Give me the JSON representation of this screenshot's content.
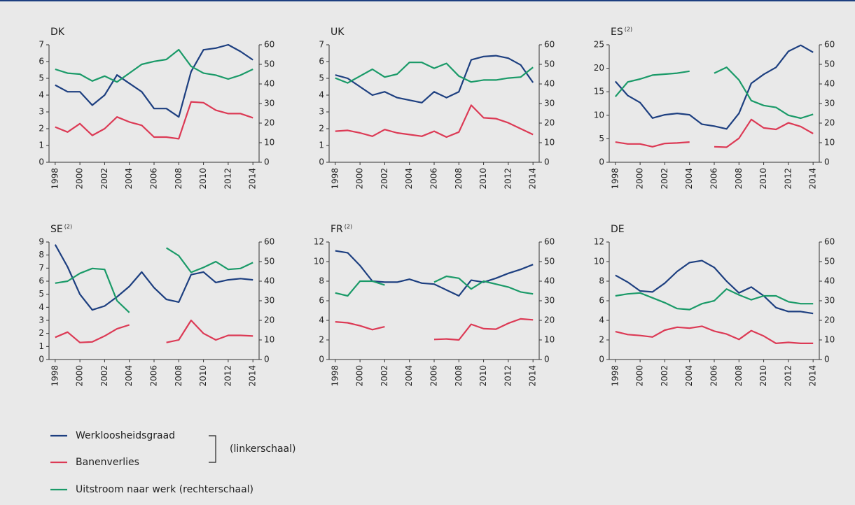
{
  "legend_note": "(linkerschaal)",
  "chart_data": [
    {
      "type": "line",
      "title": "DK",
      "x": [
        1998,
        1999,
        2000,
        2001,
        2002,
        2003,
        2004,
        2005,
        2006,
        2007,
        2008,
        2009,
        2010,
        2011,
        2012,
        2013,
        2014
      ],
      "xlim": [
        1997.5,
        2014.5
      ],
      "xticks": [
        1998,
        2000,
        2002,
        2004,
        2006,
        2008,
        2010,
        2012,
        2014
      ],
      "ylim": [
        0,
        7
      ],
      "yticks": [
        0,
        1,
        2,
        3,
        4,
        5,
        6,
        7
      ],
      "y2lim": [
        0,
        60
      ],
      "y2ticks": [
        0,
        10,
        20,
        30,
        40,
        50,
        60
      ],
      "series": [
        {
          "name": "Werkloosheidsgraad",
          "color": "#1d3f80",
          "values": [
            4.6,
            4.2,
            4.2,
            3.4,
            4.0,
            5.2,
            4.7,
            4.2,
            3.2,
            3.2,
            2.7,
            5.4,
            6.7,
            6.8,
            7.0,
            6.6,
            6.1
          ]
        },
        {
          "name": "Banenverlies",
          "color": "#dc3a55",
          "values": [
            2.1,
            1.8,
            2.3,
            1.6,
            2.0,
            2.7,
            2.4,
            2.2,
            1.5,
            1.5,
            1.4,
            3.6,
            3.55,
            3.1,
            2.9,
            2.9,
            2.65
          ]
        },
        {
          "name": "Uitstroom naar werk (rechterschaal)",
          "color": "#1a9a68",
          "axis": "y2",
          "values": [
            47.5,
            45.5,
            45,
            41.5,
            44,
            41,
            45.5,
            50,
            51.5,
            52.5,
            57.5,
            49,
            45.5,
            44.5,
            42.5,
            44.5,
            47.5
          ]
        }
      ]
    },
    {
      "type": "line",
      "title": "UK",
      "x": [
        1998,
        1999,
        2000,
        2001,
        2002,
        2003,
        2004,
        2005,
        2006,
        2007,
        2008,
        2009,
        2010,
        2011,
        2012,
        2013,
        2014
      ],
      "xlim": [
        1997.5,
        2014.5
      ],
      "xticks": [
        1998,
        2000,
        2002,
        2004,
        2006,
        2008,
        2010,
        2012,
        2014
      ],
      "ylim": [
        0,
        7
      ],
      "yticks": [
        0,
        1,
        2,
        3,
        4,
        5,
        6,
        7
      ],
      "y2lim": [
        0,
        60
      ],
      "y2ticks": [
        0,
        10,
        20,
        30,
        40,
        50,
        60
      ],
      "series": [
        {
          "name": "Werkloosheidsgraad",
          "color": "#1d3f80",
          "values": [
            5.2,
            5.0,
            4.5,
            4.0,
            4.2,
            3.85,
            3.7,
            3.55,
            4.2,
            3.85,
            4.2,
            6.1,
            6.3,
            6.35,
            6.2,
            5.8,
            4.75
          ]
        },
        {
          "name": "Banenverlies",
          "color": "#dc3a55",
          "values": [
            1.85,
            1.9,
            1.75,
            1.55,
            1.95,
            1.75,
            1.65,
            1.55,
            1.85,
            1.5,
            1.8,
            3.4,
            2.65,
            2.6,
            2.35,
            2.0,
            1.65
          ]
        },
        {
          "name": "Uitstroom naar werk (rechterschaal)",
          "color": "#1a9a68",
          "axis": "y2",
          "values": [
            43,
            40.5,
            44,
            47.5,
            43.5,
            45,
            51,
            51,
            48,
            50.5,
            44,
            41,
            42,
            42,
            43,
            43.5,
            48.5
          ]
        }
      ]
    },
    {
      "type": "line",
      "title": "ES",
      "title_note": "(2)",
      "x": [
        1998,
        1999,
        2000,
        2001,
        2002,
        2003,
        2004,
        2005,
        2006,
        2007,
        2008,
        2009,
        2010,
        2011,
        2012,
        2013,
        2014
      ],
      "xlim": [
        1997.5,
        2014.5
      ],
      "xticks": [
        1998,
        2000,
        2002,
        2004,
        2006,
        2008,
        2010,
        2012,
        2014
      ],
      "ylim": [
        0,
        25
      ],
      "yticks": [
        0,
        5,
        10,
        15,
        20,
        25
      ],
      "y2lim": [
        0,
        60
      ],
      "y2ticks": [
        0,
        10,
        20,
        30,
        40,
        50,
        60
      ],
      "series": [
        {
          "name": "Werkloosheidsgraad",
          "color": "#1d3f80",
          "values": [
            17.2,
            14.2,
            12.7,
            9.4,
            10.1,
            10.4,
            10.1,
            8.1,
            7.7,
            7.1,
            10.4,
            16.8,
            18.7,
            20.2,
            23.6,
            24.9,
            23.4
          ]
        },
        {
          "name": "Banenverlies",
          "color": "#dc3a55",
          "values": [
            4.3,
            3.9,
            3.9,
            3.3,
            4.0,
            4.1,
            4.3,
            null,
            3.3,
            3.2,
            5.1,
            9.1,
            7.3,
            7.0,
            8.4,
            7.6,
            6.1
          ]
        },
        {
          "name": "Uitstroom naar werk (rechterschaal)",
          "color": "#1a9a68",
          "axis": "y2",
          "values": [
            33.5,
            41,
            42.5,
            44.5,
            45,
            45.5,
            46.5,
            null,
            45.5,
            48.5,
            42,
            31.5,
            29,
            28,
            24,
            22.5,
            24.5
          ]
        }
      ]
    },
    {
      "type": "line",
      "title": "SE",
      "title_note": "(2)",
      "x": [
        1998,
        1999,
        2000,
        2001,
        2002,
        2003,
        2004,
        2005,
        2006,
        2007,
        2008,
        2009,
        2010,
        2011,
        2012,
        2013,
        2014
      ],
      "xlim": [
        1997.5,
        2014.5
      ],
      "xticks": [
        1998,
        2000,
        2002,
        2004,
        2006,
        2008,
        2010,
        2012,
        2014
      ],
      "ylim": [
        0,
        9
      ],
      "yticks": [
        0,
        1,
        2,
        3,
        4,
        5,
        6,
        7,
        8,
        9
      ],
      "y2lim": [
        0,
        60
      ],
      "y2ticks": [
        0,
        10,
        20,
        30,
        40,
        50,
        60
      ],
      "series": [
        {
          "name": "Werkloosheidsgraad",
          "color": "#1d3f80",
          "values": [
            8.8,
            7.1,
            5.0,
            3.8,
            4.1,
            4.8,
            5.6,
            6.7,
            5.5,
            4.6,
            4.4,
            6.5,
            6.7,
            5.9,
            6.1,
            6.2,
            6.1
          ]
        },
        {
          "name": "Banenverlies",
          "color": "#dc3a55",
          "values": [
            1.7,
            2.1,
            1.3,
            1.35,
            1.8,
            2.35,
            2.65,
            null,
            null,
            1.3,
            1.5,
            3.0,
            2.0,
            1.5,
            1.85,
            1.85,
            1.8
          ]
        },
        {
          "name": "Uitstroom naar werk (rechterschaal)",
          "color": "#1a9a68",
          "axis": "y2",
          "values": [
            39,
            40,
            44,
            46.5,
            46,
            30,
            24,
            null,
            null,
            57,
            53,
            44.5,
            47,
            50,
            46,
            46.5,
            49.5
          ]
        }
      ]
    },
    {
      "type": "line",
      "title": "FR",
      "title_note": "(2)",
      "x": [
        1998,
        1999,
        2000,
        2001,
        2002,
        2003,
        2004,
        2005,
        2006,
        2007,
        2008,
        2009,
        2010,
        2011,
        2012,
        2013,
        2014
      ],
      "xlim": [
        1997.5,
        2014.5
      ],
      "xticks": [
        1998,
        2000,
        2002,
        2004,
        2006,
        2008,
        2010,
        2012,
        2014
      ],
      "ylim": [
        0,
        12
      ],
      "yticks": [
        0,
        2,
        4,
        6,
        8,
        10,
        12
      ],
      "y2lim": [
        0,
        60
      ],
      "y2ticks": [
        0,
        10,
        20,
        30,
        40,
        50,
        60
      ],
      "series": [
        {
          "name": "Werkloosheidsgraad",
          "color": "#1d3f80",
          "values": [
            11.1,
            10.9,
            9.6,
            8.0,
            7.9,
            7.9,
            8.2,
            7.8,
            7.7,
            7.1,
            6.5,
            8.1,
            7.9,
            8.3,
            8.8,
            9.2,
            9.7
          ]
        },
        {
          "name": "Banenverlies",
          "color": "#dc3a55",
          "values": [
            3.85,
            3.75,
            3.45,
            3.05,
            3.35,
            null,
            null,
            null,
            2.05,
            2.1,
            2.0,
            3.6,
            3.15,
            3.1,
            3.7,
            4.15,
            4.05
          ]
        },
        {
          "name": "Uitstroom naar werk (rechterschaal)",
          "color": "#1a9a68",
          "axis": "y2",
          "values": [
            34,
            32.5,
            40,
            40,
            38,
            null,
            null,
            null,
            39.5,
            42.5,
            41.5,
            36,
            40,
            38.5,
            37,
            34.5,
            33.5
          ]
        }
      ]
    },
    {
      "type": "line",
      "title": "DE",
      "x": [
        1998,
        1999,
        2000,
        2001,
        2002,
        2003,
        2004,
        2005,
        2006,
        2007,
        2008,
        2009,
        2010,
        2011,
        2012,
        2013,
        2014
      ],
      "xlim": [
        1997.5,
        2014.5
      ],
      "xticks": [
        1998,
        2000,
        2002,
        2004,
        2006,
        2008,
        2010,
        2012,
        2014
      ],
      "ylim": [
        0,
        12
      ],
      "yticks": [
        0,
        2,
        4,
        6,
        8,
        10,
        12
      ],
      "y2lim": [
        0,
        60
      ],
      "y2ticks": [
        0,
        10,
        20,
        30,
        40,
        50,
        60
      ],
      "series": [
        {
          "name": "Werkloosheidsgraad",
          "color": "#1d3f80",
          "values": [
            8.6,
            7.9,
            7.0,
            6.9,
            7.8,
            9.0,
            9.9,
            10.1,
            9.4,
            8.0,
            6.8,
            7.4,
            6.5,
            5.3,
            4.9,
            4.9,
            4.7
          ]
        },
        {
          "name": "Banenverlies",
          "color": "#dc3a55",
          "values": [
            2.85,
            2.55,
            2.45,
            2.3,
            3.0,
            3.3,
            3.2,
            3.4,
            2.9,
            2.6,
            2.05,
            2.95,
            2.4,
            1.65,
            1.75,
            1.65,
            1.65
          ]
        },
        {
          "name": "Uitstroom naar werk (rechterschaal)",
          "color": "#1a9a68",
          "axis": "y2",
          "values": [
            32.5,
            33.5,
            34,
            31.5,
            29,
            26,
            25.5,
            28.5,
            30,
            36,
            33,
            30.5,
            32.5,
            32.5,
            29.5,
            28.5,
            28.5
          ]
        }
      ]
    }
  ]
}
